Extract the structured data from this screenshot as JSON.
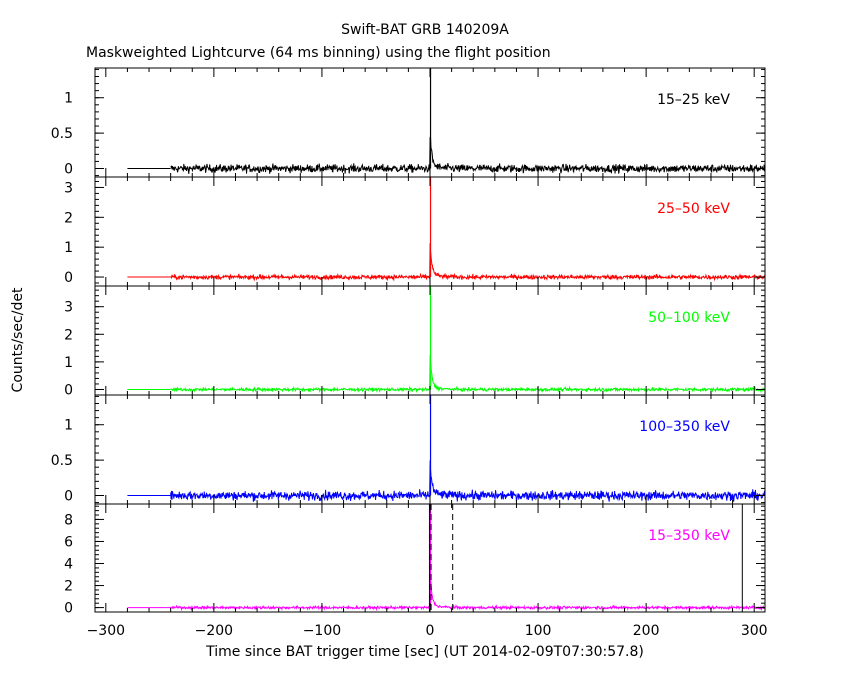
{
  "chart_data": {
    "type": "line",
    "title": "Swift-BAT GRB 140209A",
    "subtitle": "Maskweighted Lightcurve (64 ms binning) using the flight position",
    "xlabel": "Time since BAT trigger time [sec] (UT 2014-02-09T07:30:57.8)",
    "ylabel": "Counts/sec/det",
    "xlim": [
      -310,
      310
    ],
    "x_ticks": [
      "-300",
      "-200",
      "-100",
      "0",
      "100",
      "200",
      "300"
    ],
    "grid": false,
    "panels": [
      {
        "name": "15-25 keV",
        "label": "15–25 keV",
        "color": "#000000",
        "ylim": [
          -0.12,
          1.42
        ],
        "y_ticks": [
          "0",
          "0.5",
          "1"
        ],
        "baseline_start": -240,
        "noise_amplitude": 0.07,
        "peak": 1.42,
        "bg_segment": {
          "x": [
            -280,
            -240
          ],
          "y": 0
        }
      },
      {
        "name": "25-50 keV",
        "label": "25–50 keV",
        "color": "#ff0000",
        "ylim": [
          -0.3,
          3.35
        ],
        "y_ticks": [
          "0",
          "1",
          "2",
          "3"
        ],
        "baseline_start": -240,
        "noise_amplitude": 0.09,
        "peak": 3.35,
        "bg_segment": {
          "x": [
            -280,
            -240
          ],
          "y": 0
        }
      },
      {
        "name": "50-100 keV",
        "label": "50–100 keV",
        "color": "#00ff00",
        "ylim": [
          -0.2,
          3.75
        ],
        "y_ticks": [
          "0",
          "1",
          "2",
          "3"
        ],
        "baseline_start": -240,
        "noise_amplitude": 0.07,
        "peak": 3.75,
        "bg_segment": {
          "x": [
            -280,
            -240
          ],
          "y": 0
        }
      },
      {
        "name": "100-350 keV",
        "label": "100–350 keV",
        "color": "#0000ff",
        "ylim": [
          -0.12,
          1.42
        ],
        "y_ticks": [
          "0",
          "0.5",
          "1"
        ],
        "baseline_start": -240,
        "noise_amplitude": 0.08,
        "peak": 1.42,
        "bg_segment": {
          "x": [
            -280,
            -240
          ],
          "y": 0
        }
      },
      {
        "name": "15-350 keV",
        "label": "15–350 keV",
        "color": "#ff00ff",
        "ylim": [
          -0.4,
          9.4
        ],
        "y_ticks": [
          "0",
          "2",
          "4",
          "6",
          "8"
        ],
        "baseline_start": -240,
        "noise_amplitude": 0.15,
        "peak": 9.4,
        "bg_segment": {
          "x": [
            -280,
            -240
          ],
          "y": 0
        },
        "dashed_lines_x": [
          1,
          21
        ],
        "solid_lines_x": [
          -0.5,
          289
        ]
      }
    ]
  }
}
